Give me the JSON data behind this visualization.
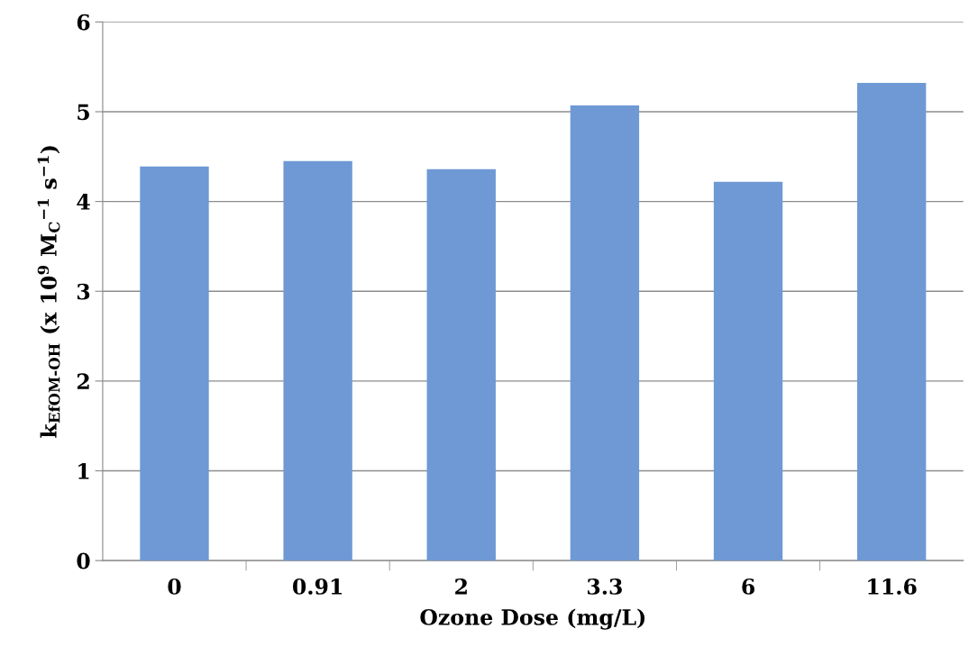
{
  "chart_data": {
    "type": "bar",
    "xlabel": "Ozone Dose (mg/L)",
    "ylabel": "k$_{EfOM‐OH}$ (x 10$^{9}$ M$_{C}$$^{−1}$ s$^{−1}$)",
    "categories": [
      "0",
      "0.91",
      "2",
      "3.3",
      "6",
      "11.6"
    ],
    "values": [
      4.39,
      4.45,
      4.36,
      5.07,
      4.22,
      5.32
    ],
    "color": "#6e99d4",
    "ylim": [
      0,
      6
    ],
    "yticks": [
      0,
      1,
      2,
      3,
      4,
      5,
      6
    ],
    "grid": "y"
  }
}
